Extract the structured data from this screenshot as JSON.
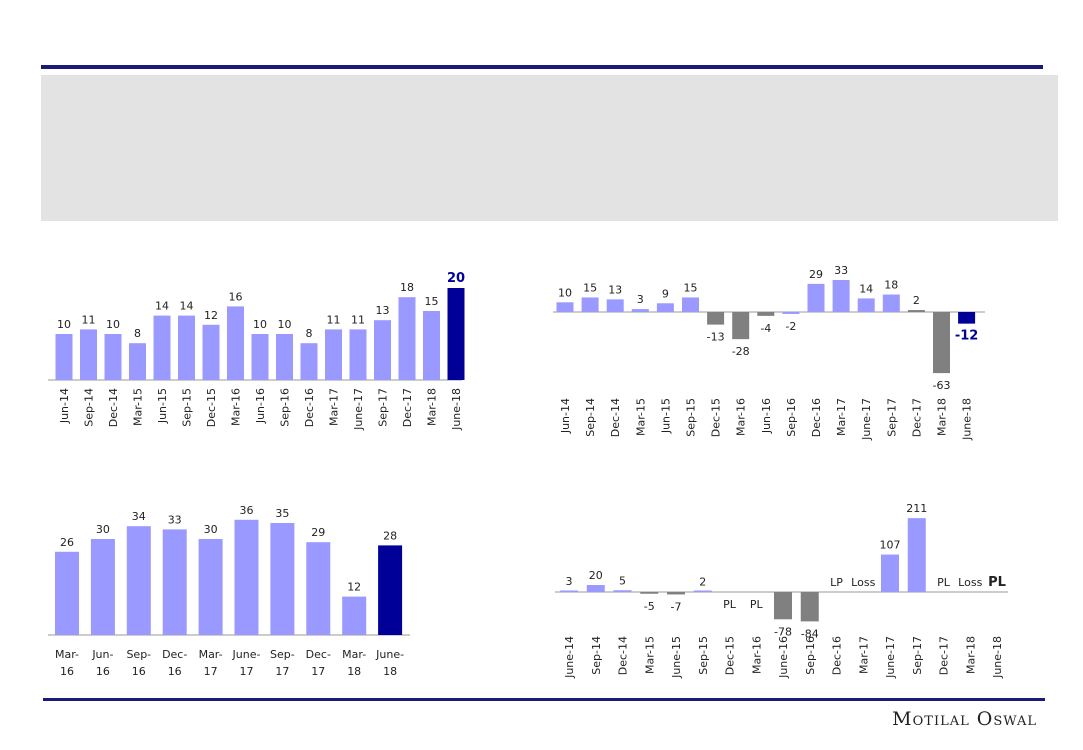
{
  "logo": "Motilal Oswal",
  "colors": {
    "positive": "#9999ff",
    "negative": "#808080",
    "highlight": "#000099",
    "rule": "#1a1a78",
    "banner": "#e3e3e3"
  },
  "chart_data": [
    {
      "type": "bar",
      "categories": [
        "Jun-14",
        "Sep-14",
        "Dec-14",
        "Mar-15",
        "Jun-15",
        "Sep-15",
        "Dec-15",
        "Mar-16",
        "Jun-16",
        "Sep-16",
        "Dec-16",
        "Mar-17",
        "June-17",
        "Sep-17",
        "Dec-17",
        "Mar-18",
        "June-18"
      ],
      "values": [
        10,
        11,
        10,
        8,
        14,
        14,
        12,
        16,
        10,
        10,
        8,
        11,
        11,
        13,
        18,
        15,
        20
      ],
      "labels": [
        "10",
        "11",
        "10",
        "8",
        "14",
        "14",
        "12",
        "16",
        "10",
        "10",
        "8",
        "11",
        "11",
        "13",
        "18",
        "15",
        "20"
      ],
      "highlight_last": true
    },
    {
      "type": "bar",
      "categories": [
        "Jun-14",
        "Sep-14",
        "Dec-14",
        "Mar-15",
        "Jun-15",
        "Sep-15",
        "Dec-15",
        "Mar-16",
        "Jun-16",
        "Sep-16",
        "Dec-16",
        "Mar-17",
        "June-17",
        "Sep-17",
        "Dec-17",
        "Mar-18",
        "June-18"
      ],
      "values": [
        10,
        15,
        13,
        3,
        9,
        15,
        -13,
        -28,
        -4,
        -2,
        29,
        33,
        14,
        18,
        2,
        -63,
        -12
      ],
      "labels": [
        "10",
        "15",
        "13",
        "3",
        "9",
        "15",
        "-13",
        "-28",
        "-4",
        "-2",
        "29",
        "33",
        "14",
        "18",
        "2",
        "-63",
        "-12"
      ],
      "gray_bars": [
        6,
        7,
        8,
        14,
        15
      ],
      "highlight_last": true
    },
    {
      "type": "bar",
      "categories": [
        "Mar-16",
        "Jun-16",
        "Sep-16",
        "Dec-16",
        "Mar-17",
        "June-17",
        "Sep-17",
        "Dec-17",
        "Mar-18",
        "June-18"
      ],
      "values": [
        26,
        30,
        34,
        33,
        30,
        36,
        35,
        29,
        12,
        28
      ],
      "labels": [
        "26",
        "30",
        "34",
        "33",
        "30",
        "36",
        "35",
        "29",
        "12",
        "28"
      ],
      "highlight_last": true
    },
    {
      "type": "bar",
      "categories": [
        "June-14",
        "Sep-14",
        "Dec-14",
        "Mar-15",
        "June-15",
        "Sep-15",
        "Dec-15",
        "Mar-16",
        "June-16",
        "Sep-16",
        "Dec-16",
        "Mar-17",
        "June-17",
        "Sep-17",
        "Dec-17",
        "Mar-18",
        "June-18"
      ],
      "values": [
        3,
        20,
        5,
        -5,
        -7,
        2,
        null,
        null,
        -78,
        -84,
        null,
        null,
        107,
        211,
        null,
        null,
        null
      ],
      "labels": [
        "3",
        "20",
        "5",
        "-5",
        "-7",
        "2",
        "PL",
        "PL",
        "-78",
        "-84",
        "LP",
        "Loss",
        "107",
        "211",
        "PL",
        "Loss",
        "PL"
      ],
      "label_below": [
        3,
        4,
        6,
        7,
        8,
        9
      ],
      "highlight_last": true
    }
  ]
}
